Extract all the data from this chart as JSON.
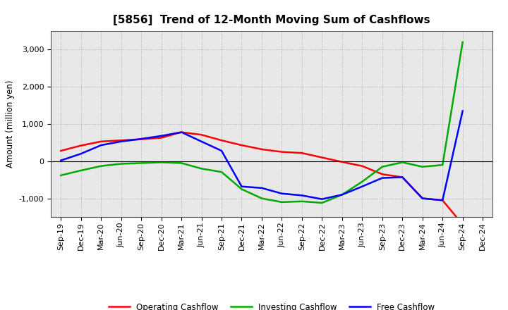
{
  "title": "[5856]  Trend of 12-Month Moving Sum of Cashflows",
  "ylabel": "Amount (million yen)",
  "x_labels": [
    "Sep-19",
    "Dec-19",
    "Mar-20",
    "Jun-20",
    "Sep-20",
    "Dec-20",
    "Mar-21",
    "Jun-21",
    "Sep-21",
    "Dec-21",
    "Mar-22",
    "Jun-22",
    "Sep-22",
    "Dec-22",
    "Mar-23",
    "Jun-23",
    "Sep-23",
    "Dec-23",
    "Mar-24",
    "Jun-24",
    "Sep-24",
    "Dec-24"
  ],
  "operating_cashflow": [
    280,
    420,
    530,
    560,
    590,
    630,
    780,
    710,
    560,
    430,
    320,
    250,
    220,
    100,
    -20,
    -130,
    -350,
    -430,
    -1000,
    -1050,
    -1700,
    null
  ],
  "investing_cashflow": [
    -380,
    -250,
    -130,
    -70,
    -50,
    -30,
    -50,
    -200,
    -290,
    -750,
    -1000,
    -1100,
    -1080,
    -1120,
    -900,
    -550,
    -150,
    -30,
    -150,
    -100,
    3200,
    null
  ],
  "free_cashflow": [
    20,
    200,
    430,
    530,
    600,
    680,
    780,
    530,
    280,
    -680,
    -720,
    -870,
    -920,
    -1020,
    -900,
    -680,
    -450,
    -430,
    -1000,
    -1050,
    1350,
    null
  ],
  "operating_color": "#ff0000",
  "investing_color": "#00aa00",
  "free_color": "#0000ff",
  "ylim": [
    -1500,
    3500
  ],
  "yticks": [
    -1000,
    0,
    1000,
    2000,
    3000
  ],
  "bg_color": "#ffffff",
  "plot_bg_color": "#e8e8e8",
  "grid_color": "#999999",
  "linewidth": 1.8,
  "title_fontsize": 11,
  "axis_fontsize": 8,
  "ylabel_fontsize": 8.5,
  "legend_fontsize": 8.5
}
